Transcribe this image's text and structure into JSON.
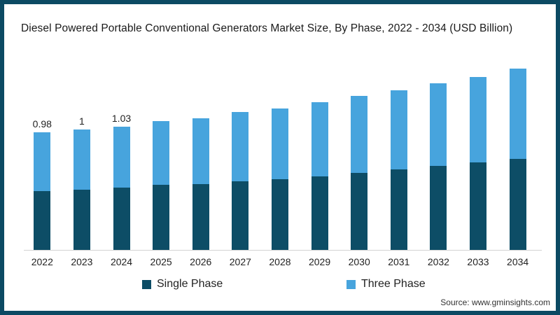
{
  "title": "Diesel Powered Portable Conventional Generators Market Size, By Phase, 2022 - 2034 (USD Billion)",
  "source": "Source: www.gminsights.com",
  "colors": {
    "frame_border": "#0c4a63",
    "single_phase": "#0d4d66",
    "three_phase": "#47a4dd",
    "axis_line": "#d2d2d2",
    "text": "#222222"
  },
  "legend": {
    "items": [
      {
        "label": "Single Phase",
        "color": "#0d4d66"
      },
      {
        "label": "Three Phase",
        "color": "#47a4dd"
      }
    ]
  },
  "chart_data": {
    "type": "bar",
    "stacked": true,
    "title": "Diesel Powered Portable Conventional Generators Market Size, By Phase, 2022 - 2034 (USD Billion)",
    "xlabel": "",
    "ylabel": "",
    "ylim": [
      0,
      1.6
    ],
    "grid": false,
    "y_axis_visible": false,
    "legend_position": "bottom",
    "categories": [
      "2022",
      "2023",
      "2024",
      "2025",
      "2026",
      "2027",
      "2028",
      "2029",
      "2030",
      "2031",
      "2032",
      "2033",
      "2034"
    ],
    "series": [
      {
        "name": "Single Phase",
        "color": "#0d4d66",
        "values": [
          0.49,
          0.5,
          0.52,
          0.54,
          0.55,
          0.57,
          0.59,
          0.61,
          0.64,
          0.67,
          0.7,
          0.73,
          0.76
        ]
      },
      {
        "name": "Three Phase",
        "color": "#47a4dd",
        "values": [
          0.49,
          0.5,
          0.51,
          0.53,
          0.55,
          0.58,
          0.59,
          0.62,
          0.64,
          0.66,
          0.69,
          0.71,
          0.75
        ]
      }
    ],
    "totals": [
      0.98,
      1.0,
      1.03,
      1.07,
      1.1,
      1.15,
      1.18,
      1.23,
      1.28,
      1.33,
      1.39,
      1.44,
      1.51
    ],
    "totals_labels": [
      "0.98",
      "1",
      "1.03",
      "",
      "",
      "",
      "",
      "",
      "",
      "",
      "",
      "",
      ""
    ]
  }
}
